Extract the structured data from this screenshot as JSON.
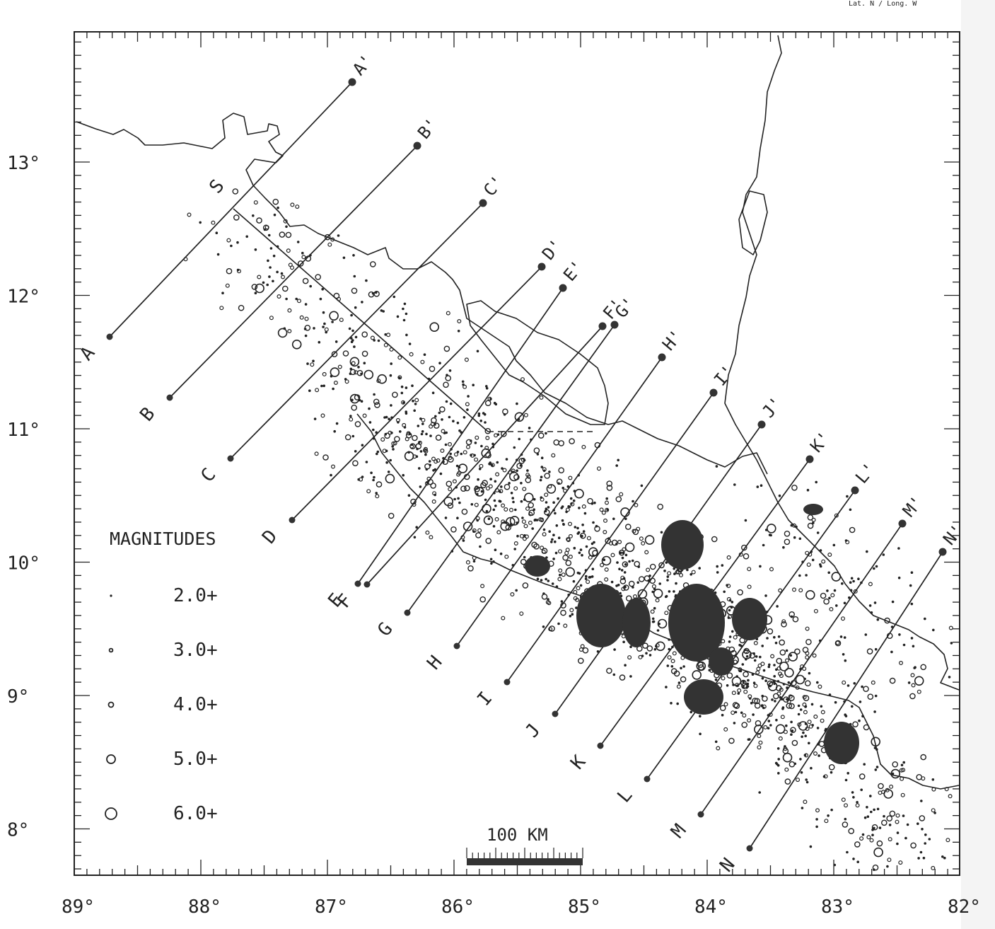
{
  "header_text": "Lat. N / Long. W",
  "axes": {
    "lat_labels": [
      "13°",
      "12°",
      "11°",
      "10°",
      "9°",
      "8°"
    ],
    "lon_labels": [
      "89°",
      "88°",
      "87°",
      "86°",
      "85°",
      "84°",
      "83°",
      "82°"
    ],
    "lat_values": [
      13,
      12,
      11,
      10,
      9,
      8
    ],
    "lon_values": [
      89,
      88,
      87,
      86,
      85,
      84,
      83,
      82
    ]
  },
  "legend": {
    "title": "MAGNITUDES",
    "items": [
      {
        "label": "2.0+",
        "magnitude": 2.0
      },
      {
        "label": "3.0+",
        "magnitude": 3.0
      },
      {
        "label": "4.0+",
        "magnitude": 4.0
      },
      {
        "label": "5.0+",
        "magnitude": 5.0
      },
      {
        "label": "6.0+",
        "magnitude": 6.0
      }
    ]
  },
  "scale_bar": {
    "label": "100 KM",
    "length_km": 100
  },
  "sections": [
    {
      "start": "A",
      "end": "A'"
    },
    {
      "start": "B",
      "end": "B'"
    },
    {
      "start": "C",
      "end": "C'"
    },
    {
      "start": "D",
      "end": "D'"
    },
    {
      "start": "E",
      "end": "E'"
    },
    {
      "start": "F",
      "end": "F'"
    },
    {
      "start": "G",
      "end": "G'"
    },
    {
      "start": "H",
      "end": "H'"
    },
    {
      "start": "I",
      "end": "I'"
    },
    {
      "start": "J",
      "end": "J'"
    },
    {
      "start": "K",
      "end": "K'"
    },
    {
      "start": "L",
      "end": "L'"
    },
    {
      "start": "M",
      "end": "M'"
    },
    {
      "start": "N",
      "end": "N'"
    }
  ],
  "trench_label": "S",
  "colors": {
    "ink": "#222222",
    "fill": "#333333",
    "background": "#ffffff"
  }
}
